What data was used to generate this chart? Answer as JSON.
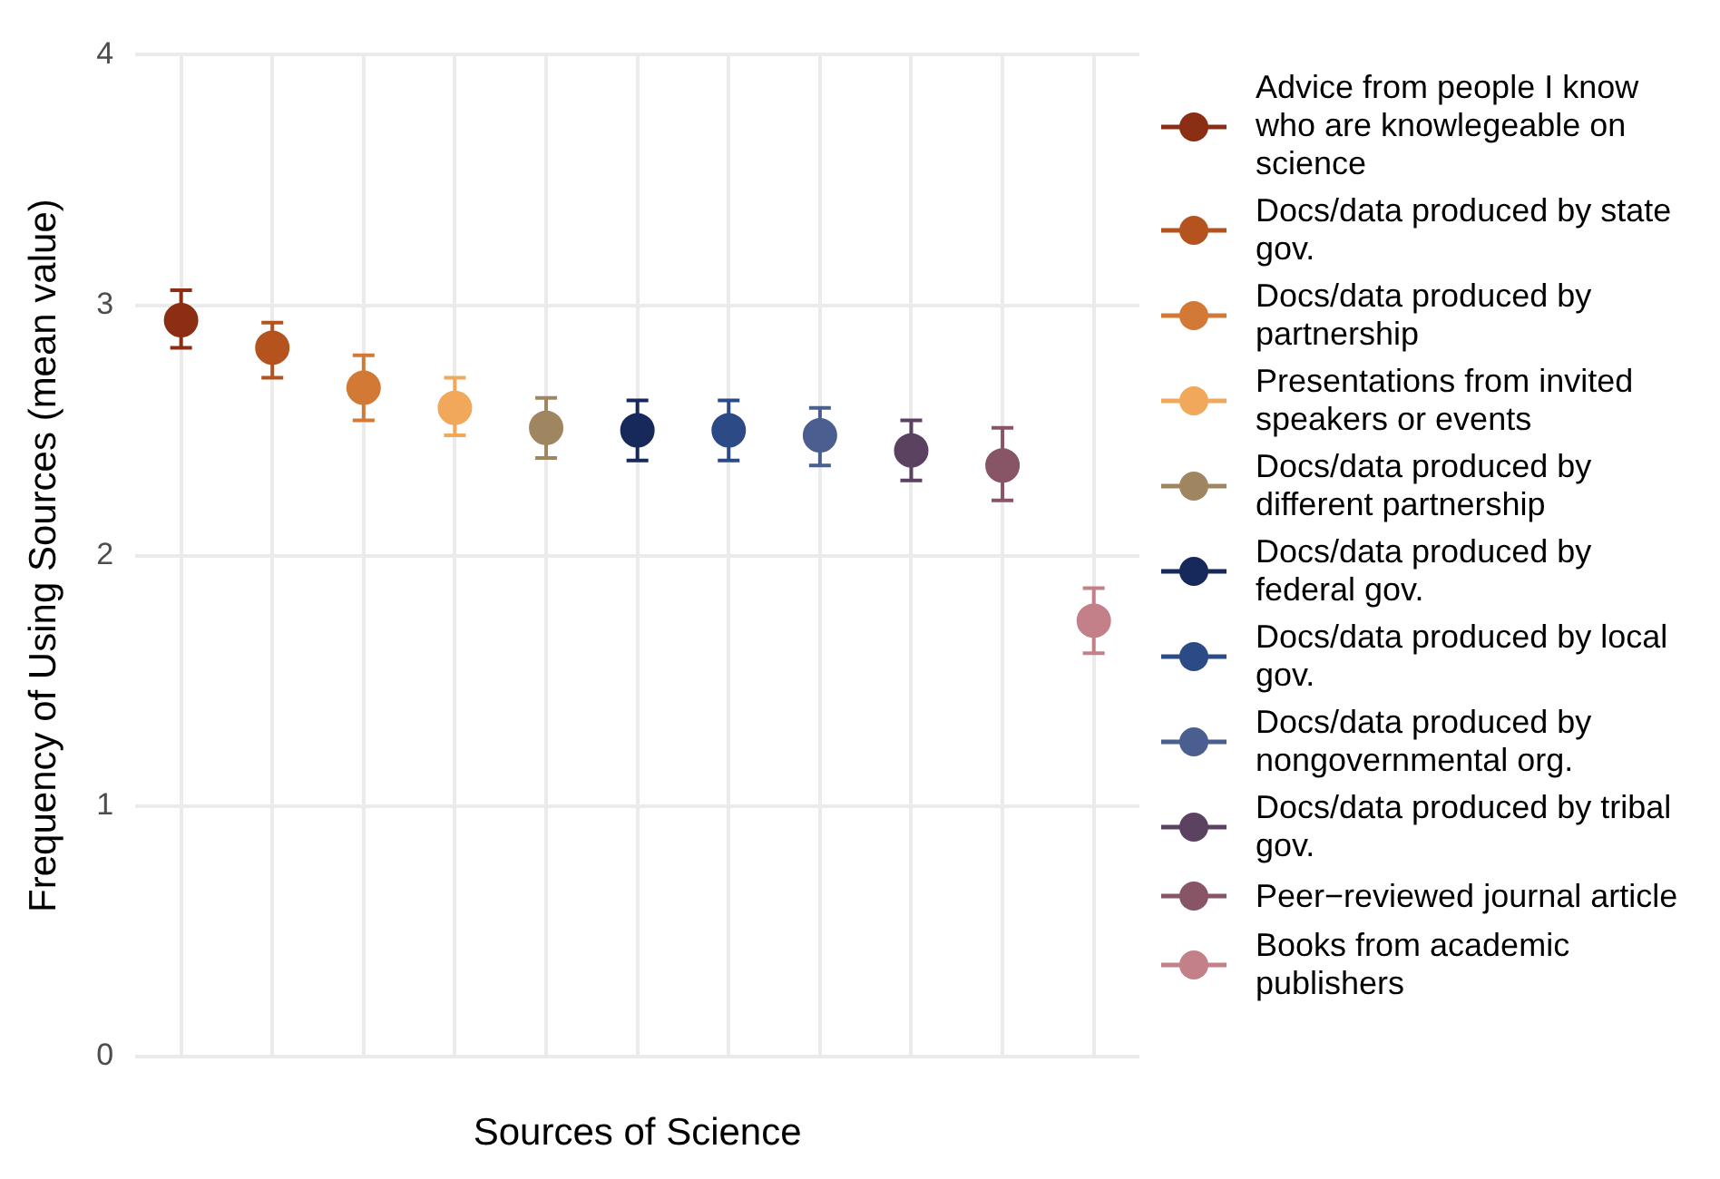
{
  "chart_data": {
    "type": "scatter",
    "xlabel": "Sources of Science",
    "ylabel": "Frequency of Using Sources (mean value)",
    "categories": [
      null,
      null,
      null,
      null,
      null,
      null,
      null,
      null,
      null,
      null,
      null
    ],
    "ylim": [
      0,
      4
    ],
    "yticks": [
      0,
      1,
      2,
      3,
      4
    ],
    "grid": true,
    "legend": "right",
    "marker": "circle",
    "line_style": "solid",
    "series": [
      {
        "name": "Advice from people I know who are knowlegeable on science",
        "color": "#8b2e14",
        "values": [
          2.94,
          null,
          null,
          null,
          null,
          null,
          null,
          null,
          null,
          null,
          null
        ],
        "errors": [
          [
            2.83,
            3.06
          ],
          null,
          null,
          null,
          null,
          null,
          null,
          null,
          null,
          null,
          null
        ]
      },
      {
        "name": "Docs/data produced by state gov.",
        "color": "#b5531f",
        "values": [
          null,
          2.83,
          null,
          null,
          null,
          null,
          null,
          null,
          null,
          null,
          null
        ],
        "errors": [
          null,
          [
            2.71,
            2.93
          ],
          null,
          null,
          null,
          null,
          null,
          null,
          null,
          null,
          null
        ]
      },
      {
        "name": "Docs/data produced by partnership",
        "color": "#d27a35",
        "values": [
          null,
          null,
          2.67,
          null,
          null,
          null,
          null,
          null,
          null,
          null,
          null
        ],
        "errors": [
          null,
          null,
          [
            2.54,
            2.8
          ],
          null,
          null,
          null,
          null,
          null,
          null,
          null,
          null
        ]
      },
      {
        "name": "Presentations from invited speakers or events",
        "color": "#f2a85a",
        "values": [
          null,
          null,
          null,
          2.59,
          null,
          null,
          null,
          null,
          null,
          null,
          null
        ],
        "errors": [
          null,
          null,
          null,
          [
            2.48,
            2.71
          ],
          null,
          null,
          null,
          null,
          null,
          null,
          null
        ]
      },
      {
        "name": "Docs/data produced by different partnership",
        "color": "#a08660",
        "values": [
          null,
          null,
          null,
          null,
          2.51,
          null,
          null,
          null,
          null,
          null,
          null
        ],
        "errors": [
          null,
          null,
          null,
          null,
          [
            2.39,
            2.63
          ],
          null,
          null,
          null,
          null,
          null,
          null
        ]
      },
      {
        "name": "Docs/data produced by federal gov.",
        "color": "#16295a",
        "values": [
          null,
          null,
          null,
          null,
          null,
          2.5,
          null,
          null,
          null,
          null,
          null
        ],
        "errors": [
          null,
          null,
          null,
          null,
          null,
          [
            2.38,
            2.62
          ],
          null,
          null,
          null,
          null,
          null
        ]
      },
      {
        "name": "Docs/data produced by local gov.",
        "color": "#2c4a86",
        "values": [
          null,
          null,
          null,
          null,
          null,
          null,
          2.5,
          null,
          null,
          null,
          null
        ],
        "errors": [
          null,
          null,
          null,
          null,
          null,
          null,
          [
            2.38,
            2.62
          ],
          null,
          null,
          null,
          null
        ]
      },
      {
        "name": "Docs/data produced by nongovernmental org.",
        "color": "#4a5f8f",
        "values": [
          null,
          null,
          null,
          null,
          null,
          null,
          null,
          2.48,
          null,
          null,
          null
        ],
        "errors": [
          null,
          null,
          null,
          null,
          null,
          null,
          null,
          [
            2.36,
            2.59
          ],
          null,
          null,
          null
        ]
      },
      {
        "name": "Docs/data produced by tribal gov.",
        "color": "#5a4260",
        "values": [
          null,
          null,
          null,
          null,
          null,
          null,
          null,
          null,
          2.42,
          null,
          null
        ],
        "errors": [
          null,
          null,
          null,
          null,
          null,
          null,
          null,
          null,
          [
            2.3,
            2.54
          ],
          null,
          null
        ]
      },
      {
        "name": "Peer−reviewed journal article",
        "color": "#875565",
        "values": [
          null,
          null,
          null,
          null,
          null,
          null,
          null,
          null,
          null,
          2.36,
          null
        ],
        "errors": [
          null,
          null,
          null,
          null,
          null,
          null,
          null,
          null,
          null,
          [
            2.22,
            2.51
          ],
          null
        ]
      },
      {
        "name": "Books from academic publishers",
        "color": "#c48088",
        "values": [
          null,
          null,
          null,
          null,
          null,
          null,
          null,
          null,
          null,
          null,
          1.74
        ],
        "errors": [
          null,
          null,
          null,
          null,
          null,
          null,
          null,
          null,
          null,
          null,
          [
            1.61,
            1.87
          ]
        ]
      }
    ]
  }
}
